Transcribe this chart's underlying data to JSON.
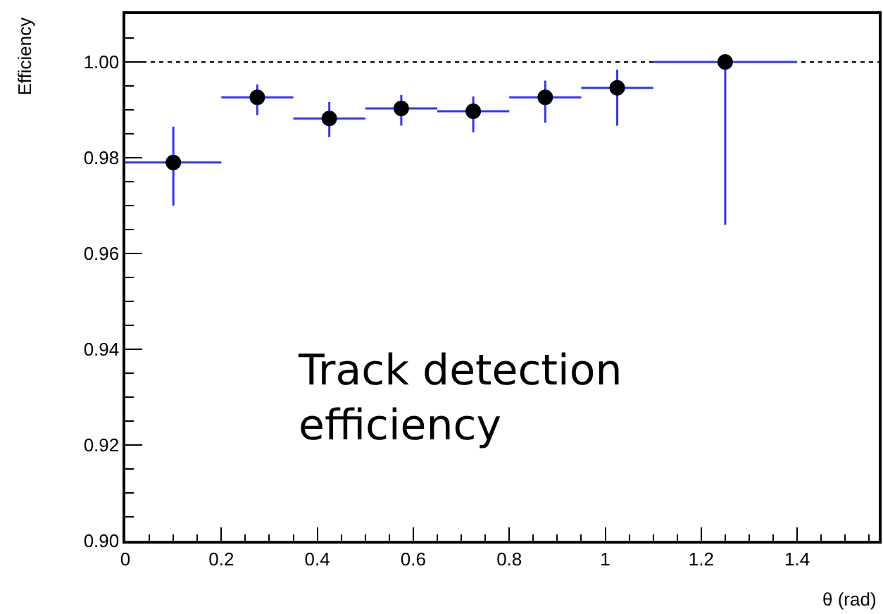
{
  "chart_data": {
    "type": "scatter",
    "xlabel": "θ (rad)",
    "ylabel": "Efficiency",
    "annotations": [
      "Track detection efficiency"
    ],
    "x": [
      0.1,
      0.275,
      0.425,
      0.575,
      0.725,
      0.875,
      1.025,
      1.25
    ],
    "series": [
      {
        "color": "#000000",
        "values": [
          0.979,
          0.9926,
          0.9882,
          0.9903,
          0.9897,
          0.9926,
          0.9946,
          1.0
        ],
        "errors": [
          [
            0.97,
            0.9865
          ],
          [
            0.9889,
            0.9953
          ],
          [
            0.9843,
            0.9916
          ],
          [
            0.9867,
            0.9931
          ],
          [
            0.9853,
            0.9928
          ],
          [
            0.9873,
            0.9961
          ],
          [
            0.9867,
            0.9984
          ],
          [
            0.966,
            1.0
          ]
        ],
        "xerrors": [
          [
            0,
            0.2
          ],
          [
            0.2,
            0.35
          ],
          [
            0.35,
            0.5
          ],
          [
            0.5,
            0.65
          ],
          [
            0.65,
            0.8
          ],
          [
            0.8,
            0.95
          ],
          [
            0.95,
            1.1
          ],
          [
            1.1,
            1.4
          ]
        ]
      }
    ],
    "xlim": [
      0,
      1.57
    ],
    "ylim": [
      0.9,
      1.01
    ],
    "xticks": [
      0,
      0.2,
      0.4,
      0.6,
      0.8,
      1,
      1.2,
      1.4
    ],
    "yticks": [
      {
        "value": 0.9,
        "label": "0.90"
      },
      {
        "value": 0.92,
        "label": "0.92"
      },
      {
        "value": 0.94,
        "label": "0.94"
      },
      {
        "value": 0.96,
        "label": "0.96"
      },
      {
        "value": 0.98,
        "label": "0.98"
      },
      {
        "value": 1.0,
        "label": "1.00"
      }
    ],
    "ref_lines": [
      {
        "axis": "y",
        "value": 1.0,
        "color": "#000000",
        "line_style": "dotted"
      }
    ],
    "marker": "circle",
    "grid": false
  }
}
